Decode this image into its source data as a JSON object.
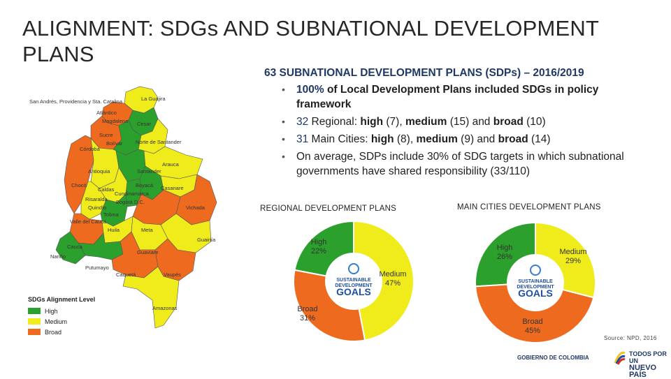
{
  "title": "ALIGNMENT: SDGs AND SUBNATIONAL DEVELOPMENT PLANS",
  "subtitle": "63 SUBNATIONAL DEVELOPMENT PLANS (SDPs) – 2016/2019",
  "bullets": {
    "b1_num": "100%",
    "b1_text": " of Local Development Plans included SDGs in policy framework",
    "b2_num": "32",
    "b2_a": " Regional: ",
    "b2_high": "high",
    "b2_b": " (7), ",
    "b2_med": "medium",
    "b2_c": " (15) and ",
    "b2_broad": "broad",
    "b2_d": " (10)",
    "b3_num": "31",
    "b3_a": " Main Cities: ",
    "b3_high": "high",
    "b3_b": " (8), ",
    "b3_med": "medium",
    "b3_c": " (9) and ",
    "b3_broad": "broad",
    "b3_d": " (14)",
    "b4_text": "On average, SDPs include 30% of SDG targets in which subnational governments have shared responsibility (33/110)"
  },
  "map": {
    "labels": [
      "San Andrés, Providencia y Sta. Catalina",
      "La Guajira",
      "Atlántico",
      "Magdalena",
      "Cesar",
      "Sucre",
      "Bolívar",
      "Córdoba",
      "Norte de Santander",
      "Antioquia",
      "Santander",
      "Arauca",
      "Boyacá",
      "Casanare",
      "Chocó",
      "Caldas",
      "Cundinamarca",
      "Risaralda",
      "Bogotá D.C.",
      "Quindío",
      "Tolima",
      "Valle del Cauca",
      "Meta",
      "Vichada",
      "Huila",
      "Cauca",
      "Guainía",
      "Nariño",
      "Guaviare",
      "Putumayo",
      "Caquetá",
      "Vaupés",
      "Amazonas"
    ],
    "legend_title": "SDGs Alignment Level",
    "legend": [
      {
        "label": "High",
        "color": "#2ca02c"
      },
      {
        "label": "Medium",
        "color": "#f0ec1c"
      },
      {
        "label": "Broad",
        "color": "#ee6a1e"
      }
    ]
  },
  "chart_data": [
    {
      "type": "pie",
      "title": "REGIONAL DEVELOPMENT PLANS",
      "categories": [
        "High",
        "Medium",
        "Broad"
      ],
      "values": [
        22,
        47,
        31
      ],
      "labels": [
        "High 22%",
        "Medium 47%",
        "Broad 31%"
      ],
      "colors": [
        "#2ca02c",
        "#f0ec1c",
        "#ee6a1e"
      ],
      "center_logo": "SUSTAINABLE DEVELOPMENT GOALS"
    },
    {
      "type": "pie",
      "title": "MAIN CITIES DEVELOPMENT PLANS",
      "categories": [
        "High",
        "Medium",
        "Broad"
      ],
      "values": [
        26,
        29,
        45
      ],
      "labels": [
        "High 26%",
        "Medium 29%",
        "Broad 45%"
      ],
      "colors": [
        "#2ca02c",
        "#f0ec1c",
        "#ee6a1e"
      ],
      "center_logo": "SUSTAINABLE DEVELOPMENT GOALS"
    }
  ],
  "sdg_logo": {
    "line1": "SUSTAINABLE",
    "line2": "DEVELOPMENT",
    "line3": "GOALS"
  },
  "source": "Source: NPD, 2016",
  "footer": {
    "gov": "GOBIERNO DE COLOMBIA",
    "line1": "TODOS POR UN",
    "line2": "NUEVO PAÍS"
  }
}
